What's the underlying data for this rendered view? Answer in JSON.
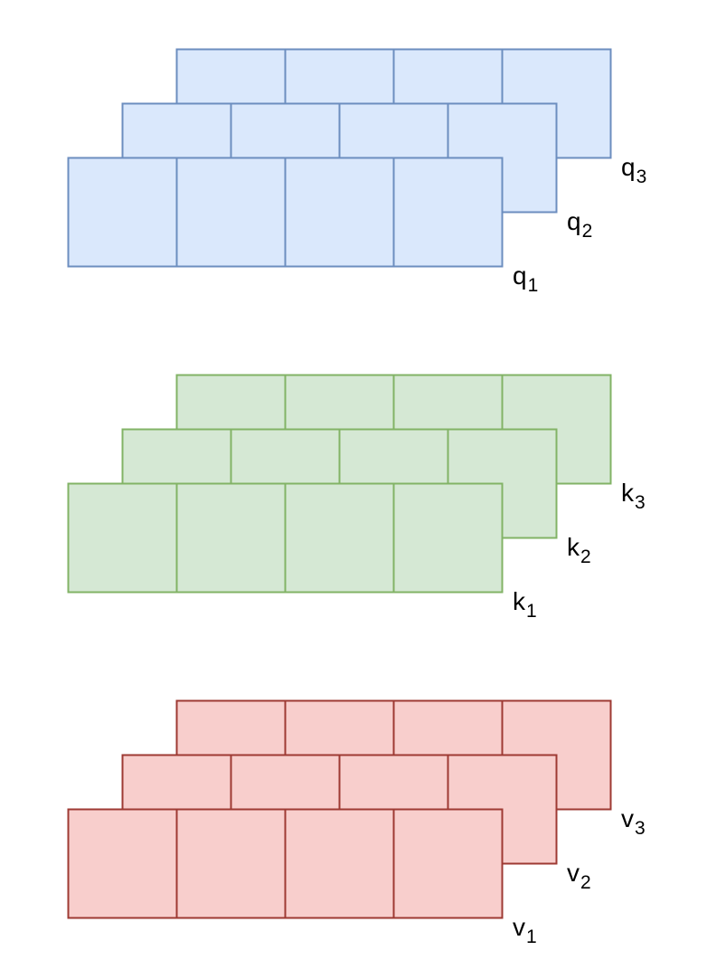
{
  "diagram": {
    "groups": [
      {
        "name": "q",
        "fill": "#dae8fc",
        "stroke": "#6c8ebf",
        "cells_per_row": 4,
        "layers": [
          {
            "letter": "q",
            "sub": "3"
          },
          {
            "letter": "q",
            "sub": "2"
          },
          {
            "letter": "q",
            "sub": "1"
          }
        ]
      },
      {
        "name": "k",
        "fill": "#d5e8d4",
        "stroke": "#82b366",
        "cells_per_row": 4,
        "layers": [
          {
            "letter": "k",
            "sub": "3"
          },
          {
            "letter": "k",
            "sub": "2"
          },
          {
            "letter": "k",
            "sub": "1"
          }
        ]
      },
      {
        "name": "v",
        "fill": "#f8cecc",
        "stroke": "#9e3a33",
        "cells_per_row": 4,
        "layers": [
          {
            "letter": "v",
            "sub": "3"
          },
          {
            "letter": "v",
            "sub": "2"
          },
          {
            "letter": "v",
            "sub": "1"
          }
        ]
      }
    ]
  }
}
